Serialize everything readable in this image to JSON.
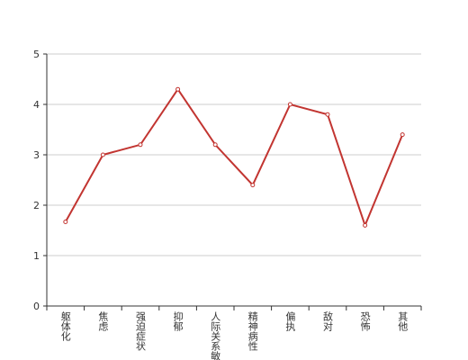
{
  "chart_data": {
    "type": "line",
    "categories": [
      "躯体化",
      "焦虑",
      "强迫症状",
      "抑郁",
      "人际关系敏感",
      "精神病性",
      "偏执",
      "敌对",
      "恐怖",
      "其他"
    ],
    "values": [
      1.67,
      3.0,
      3.2,
      4.3,
      3.2,
      2.4,
      4.0,
      3.8,
      1.6,
      3.4
    ],
    "color": "#c23531",
    "ylim": [
      0,
      5
    ],
    "yticks": [
      0,
      1,
      2,
      3,
      4,
      5
    ],
    "grid": true
  }
}
